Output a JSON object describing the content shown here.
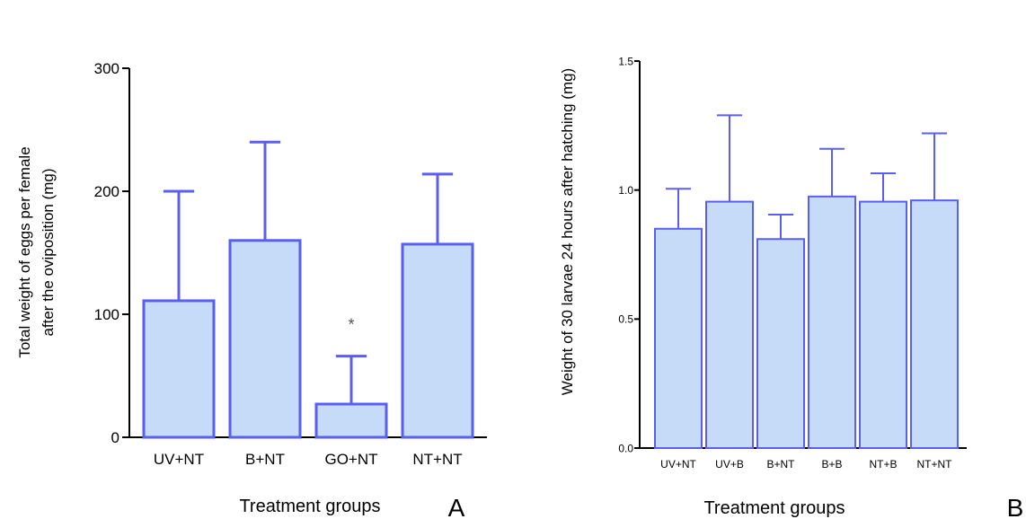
{
  "colors": {
    "bar_fill": "#c6dbf7",
    "bar_stroke": "#5b5ef0",
    "axis": "#000000",
    "significance": "#555555"
  },
  "chart_data": [
    {
      "type": "bar",
      "panel_label": "A",
      "title": "",
      "xlabel": "Treatment groups",
      "ylabel_lines": [
        "Total weight of eggs per female",
        "after the oviposition (mg)"
      ],
      "categories": [
        "UV+NT",
        "B+NT",
        "GO+NT",
        "NT+NT"
      ],
      "values": [
        111,
        160,
        27,
        157
      ],
      "error_upper": [
        200,
        240,
        66,
        214
      ],
      "ylim": [
        0,
        300
      ],
      "yticks": [
        0,
        100,
        200,
        300
      ],
      "ytick_labels": [
        "0",
        "100",
        "200",
        "300"
      ],
      "annotations": [
        {
          "category": "GO+NT",
          "text": "*",
          "y": 93
        }
      ],
      "grid": false,
      "legend": "none"
    },
    {
      "type": "bar",
      "panel_label": "B",
      "title": "",
      "xlabel": "Treatment groups",
      "ylabel_lines": [
        "Weight of 30 larvae 24 hours after hatching (mg)"
      ],
      "categories": [
        "UV+NT",
        "UV+B",
        "B+NT",
        "B+B",
        "NT+B",
        "NT+NT"
      ],
      "values": [
        0.85,
        0.955,
        0.81,
        0.975,
        0.955,
        0.96
      ],
      "error_upper": [
        1.005,
        1.29,
        0.905,
        1.16,
        1.065,
        1.22
      ],
      "ylim": [
        0,
        1.5
      ],
      "yticks": [
        0,
        0.5,
        1.0,
        1.5
      ],
      "ytick_labels": [
        "0.0",
        "0.5",
        "1.0",
        "1.5"
      ],
      "annotations": [],
      "grid": false,
      "legend": "none"
    }
  ]
}
